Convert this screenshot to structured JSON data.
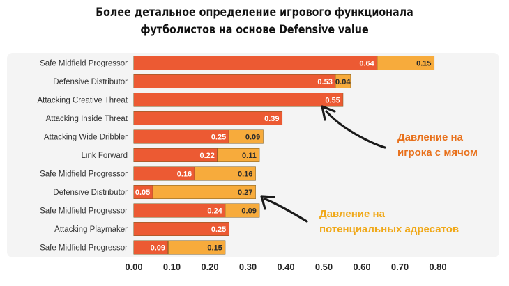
{
  "title": {
    "line1": "Более детальное определение игрового функционала",
    "line2": "футболистов на основе Defensive value"
  },
  "annotations": [
    {
      "lines": [
        "Давление на",
        "игрока с мячом"
      ],
      "color": "#e8701a"
    },
    {
      "lines": [
        "Давление на",
        "потенциальных адресатов"
      ],
      "color": "#f0a818"
    }
  ],
  "colors": {
    "series1": "#ec5a33",
    "series2": "#f7ab3c",
    "arrow": "#1a1a1a"
  },
  "chart_data": {
    "type": "bar",
    "orientation": "horizontal",
    "stacked": true,
    "categories": [
      "Safe Midfield Progressor",
      "Defensive Distributor",
      "Attacking Creative Threat",
      "Attacking Inside Threat",
      "Attacking Wide Dribbler",
      "Link Forward",
      "Safe Midfield Progressor",
      "Defensive Distributor",
      "Safe Midfield Progressor",
      "Attacking Playmaker",
      "Safe Midfield Progressor"
    ],
    "series": [
      {
        "values": [
          0.64,
          0.53,
          0.55,
          0.39,
          0.25,
          0.22,
          0.16,
          0.05,
          0.24,
          0.25,
          0.09
        ]
      },
      {
        "values": [
          0.15,
          0.04,
          0,
          0,
          0.09,
          0.11,
          0.16,
          0.27,
          0.09,
          0,
          0.15
        ]
      }
    ],
    "xlim": [
      0,
      0.8
    ],
    "xticks": [
      "0.00",
      "0.10",
      "0.20",
      "0.30",
      "0.40",
      "0.50",
      "0.60",
      "0.70",
      "0.80"
    ],
    "title": "",
    "xlabel": "",
    "ylabel": "",
    "grid": false,
    "legend": "none"
  }
}
